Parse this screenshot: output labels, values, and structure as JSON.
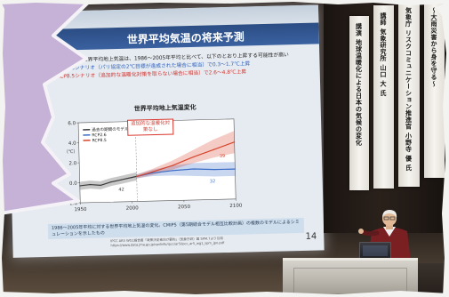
{
  "slide": {
    "title": "世界平均気温の将来予測",
    "bullets": {
      "lead": "●21世紀末の世界平均地上気温は、1986～2005年平均と比べて、以下のとおり上昇する可能性が高い",
      "rcp26": "・RCP2.6シナリオ（パリ協定の2℃目標が達成された場合に相当）で0.3～1.7℃上昇",
      "rcp85": "・RCP8.5シナリオ（追加的な温暖化対策を取らない場合に相当）で2.6～4.8℃上昇"
    },
    "note": "1986～2005年平均に対する世界平均地上気温の変化。CMIP5（第5期結合モデル相互比較計画）の複数のモデルによるシミュレーションを示したもの",
    "source": "IPCC AR5 WG1報告書「政策決定者向け要約」（気象庁訳）図 SPM.7より引用",
    "url": "https://www.data.jma.go.jp/cpdinfo/ipcc/ar5/ipcc_ar5_wg1_spm_jpn.pdf",
    "page_number": "14"
  },
  "banners": [
    "講演 地球温暖化による日本の気候の変化",
    "講師 気象研究所 山口 大 氏",
    "気象庁 リスクコミュニケーション推進官 小野寺 優 氏",
    "〜大雨災害から身を守る〜"
  ],
  "chart_data": {
    "type": "line",
    "title": "世界平均地上気温変化",
    "xlabel": "",
    "ylabel": "（℃）",
    "xlim": [
      1950,
      2100
    ],
    "ylim": [
      -2,
      6
    ],
    "xticks": [
      1950,
      2000,
      2050,
      2100
    ],
    "xtick_labels": [
      "1950",
      "2000",
      "2050",
      "2100"
    ],
    "yticks": [
      6,
      4,
      2,
      0,
      -2
    ],
    "ytick_labels": [
      "6.0",
      "4.0",
      "2.0",
      "0.0",
      "-2.0"
    ],
    "grid": false,
    "legend": "top-left",
    "annotation": "追加的な温暖化対策なし",
    "series": [
      {
        "name": "過去の期間のモデル",
        "color": "#3b3b3b",
        "x": [
          1950,
          1960,
          1970,
          1980,
          1990,
          2000,
          2005
        ],
        "y": [
          -0.3,
          -0.2,
          -0.3,
          0.0,
          0.2,
          0.4,
          0.5
        ],
        "lower": [
          -0.7,
          -0.6,
          -0.7,
          -0.4,
          -0.2,
          0.0,
          0.1
        ],
        "upper": [
          0.1,
          0.2,
          0.1,
          0.4,
          0.6,
          0.8,
          0.9
        ]
      },
      {
        "name": "RCP2.6",
        "color": "#3a6cc6",
        "x": [
          2005,
          2020,
          2040,
          2060,
          2080,
          2100
        ],
        "y": [
          0.5,
          0.8,
          1.0,
          1.1,
          1.0,
          1.0
        ],
        "lower": [
          0.3,
          0.5,
          0.5,
          0.4,
          0.3,
          0.3
        ],
        "upper": [
          0.7,
          1.1,
          1.5,
          1.7,
          1.7,
          1.7
        ]
      },
      {
        "name": "RCP8.5",
        "color": "#d6452d",
        "x": [
          2005,
          2020,
          2040,
          2060,
          2080,
          2100
        ],
        "y": [
          0.5,
          0.9,
          1.5,
          2.3,
          3.0,
          3.7
        ],
        "lower": [
          0.3,
          0.6,
          1.1,
          1.7,
          2.2,
          2.6
        ],
        "upper": [
          0.7,
          1.2,
          2.0,
          3.0,
          4.0,
          4.8
        ]
      }
    ],
    "model_counts": [
      {
        "series": 0,
        "text": "42"
      },
      {
        "series": 1,
        "text": "32"
      },
      {
        "series": 2,
        "text": "39"
      }
    ]
  }
}
